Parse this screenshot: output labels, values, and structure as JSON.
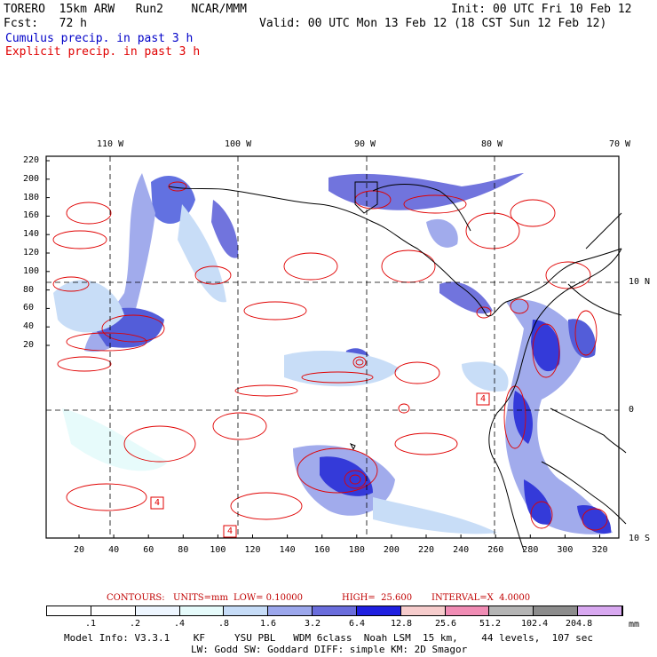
{
  "header": {
    "model": "TORERO  15km ARW   Run2    NCAR/MMM",
    "init": "Init: 00 UTC Fri 10 Feb 12",
    "fcst": "Fcst:   72 h",
    "valid": "Valid: 00 UTC Mon 13 Feb 12 (18 CST Sun 12 Feb 12)",
    "legend_cumulus": "Cumulus precip. in past 3 h",
    "legend_explicit": "Explicit precip. in past 3 h"
  },
  "map": {
    "lon_labels": [
      "110 W",
      "100 W",
      "90 W",
      "80 W",
      "70 W"
    ],
    "lat_labels": [
      "10 N",
      "0",
      "10 S"
    ],
    "y_ticks": [
      "220",
      "200",
      "180",
      "160",
      "140",
      "120",
      "100",
      "80",
      "60",
      "40",
      "20"
    ],
    "x_ticks": [
      "20",
      "40",
      "60",
      "80",
      "100",
      "120",
      "140",
      "160",
      "180",
      "200",
      "220",
      "240",
      "260",
      "280",
      "300",
      "320"
    ],
    "box_labels": [
      "4",
      "4",
      "4"
    ]
  },
  "contour_info": {
    "contours": "CONTOURS:",
    "units": "UNITS=mm",
    "low": "LOW= 0.10000",
    "high": "HIGH=  25.600",
    "interval": "INTERVAL=X  4.0000"
  },
  "colorbar": {
    "labels": [
      ".1",
      ".2",
      ".4",
      ".8",
      "1.6",
      "3.2",
      "6.4",
      "12.8",
      "25.6",
      "51.2",
      "102.4",
      "204.8"
    ],
    "unit": "mm",
    "colors": [
      "#ffffff",
      "#ffffff",
      "#eef6ff",
      "#e6fbfb",
      "#c6dcf7",
      "#9ca7ec",
      "#6a6ddc",
      "#1f1fe0",
      "#f6cccc",
      "#f08cb4",
      "#b4b4b4",
      "#8c8c8c",
      "#d8a8f0"
    ]
  },
  "model_info": {
    "line1": "Model Info: V3.3.1    KF     YSU PBL   WDM 6class  Noah LSM  15 km,    44 levels,  107 sec",
    "line2": "LW: Godd SW: Goddard DIFF: simple KM: 2D Smagor"
  }
}
